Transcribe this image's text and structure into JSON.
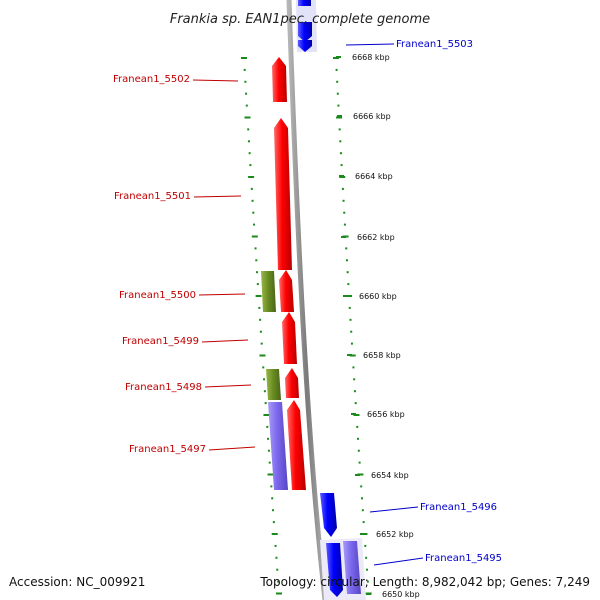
{
  "title": "Frankia sp. EAN1pec, complete genome",
  "footer": {
    "accession": "Accession: NC_009921",
    "summary": "Topology: circular; Length: 8,982,042 bp; Genes: 7,249"
  },
  "colors": {
    "gene_forward": "#0000ff",
    "gene_reverse": "#ff0000",
    "orange_like": "#6b8e23",
    "purple_like": "#7b68ee",
    "tick": "#1a8a1a",
    "backbone": "#808080"
  },
  "ruler": {
    "unit": "kbp",
    "ticks": [
      {
        "label": "6668 kbp"
      },
      {
        "label": "6666 kbp"
      },
      {
        "label": "6664 kbp"
      },
      {
        "label": "6662 kbp"
      },
      {
        "label": "6660 kbp"
      },
      {
        "label": "6658 kbp"
      },
      {
        "label": "6656 kbp"
      },
      {
        "label": "6654 kbp"
      },
      {
        "label": "6652 kbp"
      },
      {
        "label": "6650 kbp"
      }
    ]
  },
  "gene_labels": [
    {
      "name": "Franean1_5503",
      "color": "blue"
    },
    {
      "name": "Franean1_5502",
      "color": "red"
    },
    {
      "name": "Franean1_5501",
      "color": "red"
    },
    {
      "name": "Franean1_5500",
      "color": "red"
    },
    {
      "name": "Franean1_5499",
      "color": "red"
    },
    {
      "name": "Franean1_5498",
      "color": "red"
    },
    {
      "name": "Franean1_5497",
      "color": "red"
    },
    {
      "name": "Franean1_5496",
      "color": "blue"
    },
    {
      "name": "Franean1_5495",
      "color": "blue"
    }
  ]
}
